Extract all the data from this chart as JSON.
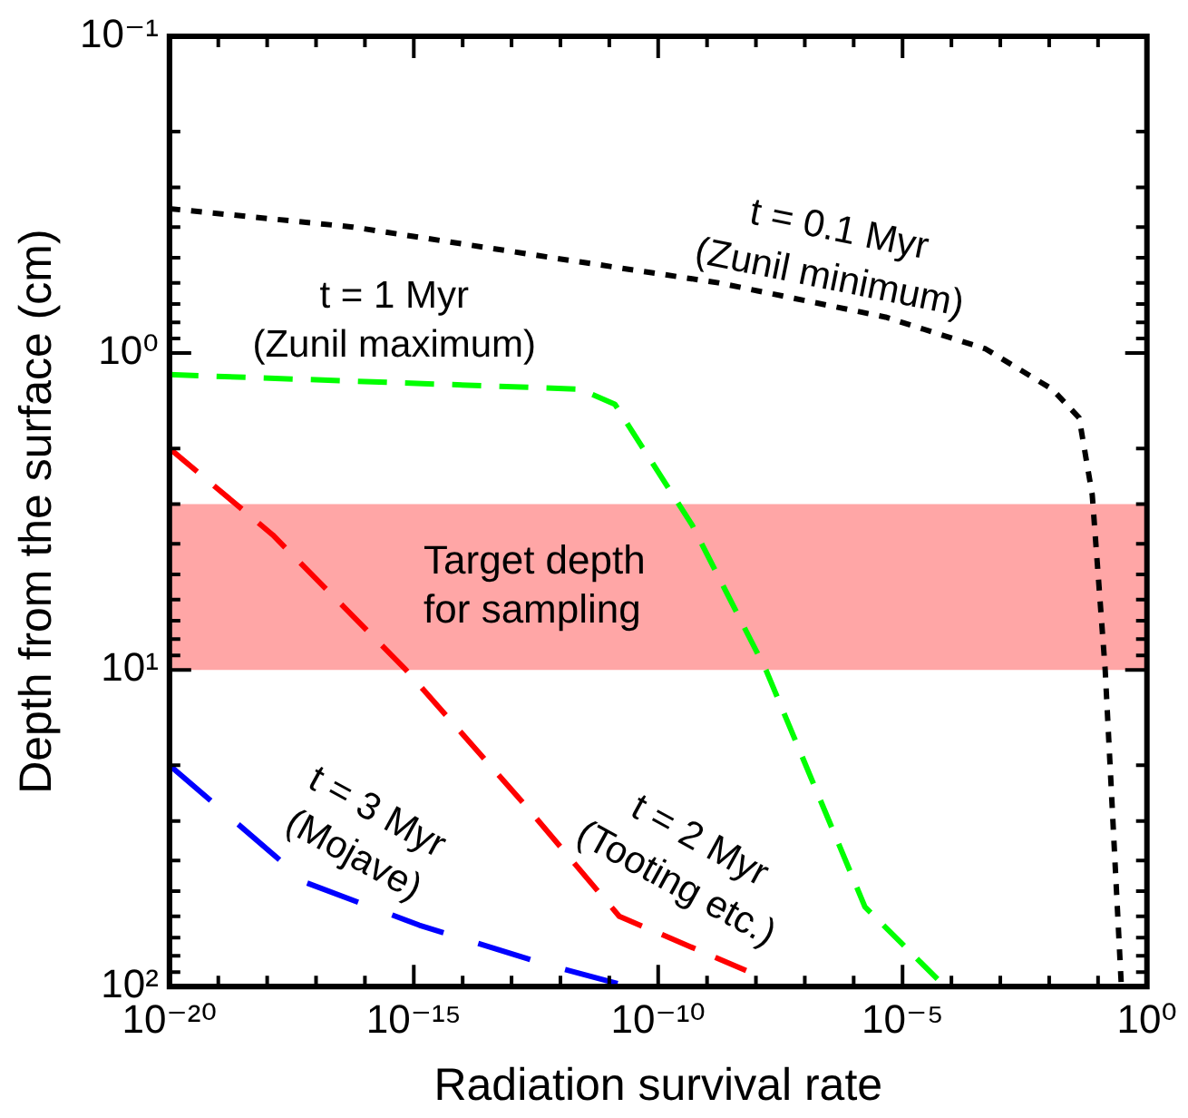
{
  "chart_data": {
    "type": "line",
    "xlabel": "Radiation survival rate",
    "ylabel": "Depth from the surface (cm)",
    "log": "xy",
    "grid": false,
    "legend": false,
    "marker": "none",
    "line_style": "dashed",
    "xlim": [
      1e-20,
      1
    ],
    "ylim": [
      100,
      0.1
    ],
    "xticks": [
      {
        "value": 1e-20,
        "label": "10⁻²⁰"
      },
      {
        "value": 1e-19,
        "label": null
      },
      {
        "value": 1e-18,
        "label": null
      },
      {
        "value": 1e-17,
        "label": null
      },
      {
        "value": 1e-16,
        "label": null
      },
      {
        "value": 1e-15,
        "label": "10⁻¹⁵"
      },
      {
        "value": 1e-14,
        "label": null
      },
      {
        "value": 1e-13,
        "label": null
      },
      {
        "value": 1e-12,
        "label": null
      },
      {
        "value": 1e-11,
        "label": null
      },
      {
        "value": 1e-10,
        "label": "10⁻¹⁰"
      },
      {
        "value": 1e-09,
        "label": null
      },
      {
        "value": 1e-08,
        "label": null
      },
      {
        "value": 1e-07,
        "label": null
      },
      {
        "value": 1e-06,
        "label": null
      },
      {
        "value": 1e-05,
        "label": "10⁻⁵"
      },
      {
        "value": 0.0001,
        "label": null
      },
      {
        "value": 0.001,
        "label": null
      },
      {
        "value": 0.01,
        "label": null
      },
      {
        "value": 0.1,
        "label": null
      },
      {
        "value": 1,
        "label": "10⁰"
      }
    ],
    "yticks": [
      {
        "value": 0.1,
        "label": "10⁻¹"
      },
      {
        "value": 0.2,
        "label": null
      },
      {
        "value": 0.3,
        "label": null
      },
      {
        "value": 0.4,
        "label": null
      },
      {
        "value": 0.5,
        "label": null
      },
      {
        "value": 0.6,
        "label": null
      },
      {
        "value": 0.7,
        "label": null
      },
      {
        "value": 0.8,
        "label": null
      },
      {
        "value": 0.9,
        "label": null
      },
      {
        "value": 1,
        "label": "10⁰"
      },
      {
        "value": 2,
        "label": null
      },
      {
        "value": 3,
        "label": null
      },
      {
        "value": 4,
        "label": null
      },
      {
        "value": 5,
        "label": null
      },
      {
        "value": 6,
        "label": null
      },
      {
        "value": 7,
        "label": null
      },
      {
        "value": 8,
        "label": null
      },
      {
        "value": 9,
        "label": null
      },
      {
        "value": 10,
        "label": "10¹"
      },
      {
        "value": 20,
        "label": null
      },
      {
        "value": 30,
        "label": null
      },
      {
        "value": 40,
        "label": null
      },
      {
        "value": 50,
        "label": null
      },
      {
        "value": 60,
        "label": null
      },
      {
        "value": 70,
        "label": null
      },
      {
        "value": 80,
        "label": null
      },
      {
        "value": 90,
        "label": null
      },
      {
        "value": 100,
        "label": "10²"
      }
    ],
    "bands": [
      {
        "axis": "y",
        "from": 3,
        "to": 10,
        "label": "Target depth\nfor sampling",
        "color": "#ffa6a6"
      }
    ],
    "series": [
      {
        "name": "t = 0.1 Myr\n(Zunil minimum)",
        "color": "#000000",
        "x": [
          1e-20,
          5.6e-17,
          6.8e-13,
          1.7e-09,
          4.5e-06,
          0.0005,
          0.0115,
          0.041,
          0.076,
          0.14,
          0.3
        ],
        "values": [
          0.35,
          0.4,
          0.5,
          0.6,
          0.77,
          0.97,
          1.3,
          1.6,
          2.8,
          10,
          100
        ]
      },
      {
        "name": "t = 1 Myr\n(Zunil maximum)",
        "color": "#00ff00",
        "x": [
          1e-20,
          2.5e-12,
          1.3e-11,
          5e-10,
          1.6e-08,
          1.7e-06,
          7.4e-05
        ],
        "values": [
          1.17,
          1.3,
          1.45,
          3.5,
          10,
          56,
          100
        ]
      },
      {
        "name": "t = 2 Myr\n(Tooting etc.)",
        "color": "#ff0000",
        "x": [
          1e-20,
          1.3e-18,
          6.9e-16,
          2e-13,
          1.6e-11,
          6.3e-09
        ],
        "values": [
          2,
          3.75,
          10,
          27,
          60,
          89
        ]
      },
      {
        "name": "t = 3 Myr\n(Mojave)",
        "color": "#0000ff",
        "x": [
          1e-20,
          6.3e-18,
          1.3e-15,
          5e-13,
          2.5e-11
        ],
        "values": [
          20,
          47,
          64,
          85,
          100
        ]
      }
    ]
  }
}
